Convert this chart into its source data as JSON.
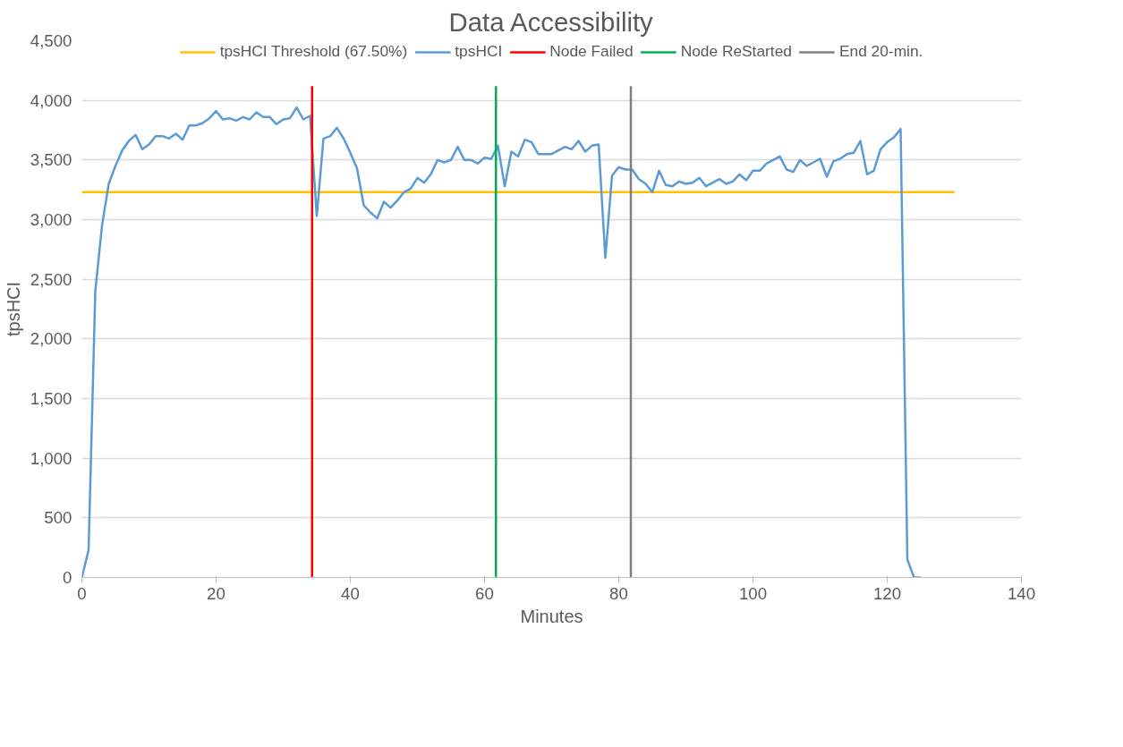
{
  "chart_data": {
    "type": "line",
    "title": "Data Accessibility",
    "xlabel": "Minutes",
    "ylabel": "tpsHCI",
    "xlim": [
      0,
      140
    ],
    "xticks": [
      0,
      20,
      40,
      60,
      80,
      100,
      120,
      140
    ],
    "ylim": [
      0,
      4500
    ],
    "yticks": [
      {
        "value": 0,
        "label": "0"
      },
      {
        "value": 500,
        "label": "500"
      },
      {
        "value": 1000,
        "label": "1,000"
      },
      {
        "value": 1500,
        "label": "1,500"
      },
      {
        "value": 2000,
        "label": "2,000"
      },
      {
        "value": 2500,
        "label": "2,500"
      },
      {
        "value": 3000,
        "label": "3,000"
      },
      {
        "value": 3500,
        "label": "3,500"
      },
      {
        "value": 4000,
        "label": "4,000"
      },
      {
        "value": 4500,
        "label": "4,500"
      }
    ],
    "grid": "y",
    "legend": "top",
    "marker": "none",
    "line_style": "solid",
    "series": [
      {
        "name": "tpsHCI Threshold (67.50%)",
        "color": "#ffc000",
        "x": [
          0,
          130
        ],
        "values": [
          3230,
          3230
        ]
      },
      {
        "name": "tpsHCI",
        "color": "#5b9bd5",
        "x": [
          0,
          1,
          2,
          3,
          4,
          5,
          6,
          7,
          8,
          9,
          10,
          11,
          12,
          13,
          14,
          15,
          16,
          17,
          18,
          19,
          20,
          21,
          22,
          23,
          24,
          25,
          26,
          27,
          28,
          29,
          30,
          31,
          32,
          33,
          34,
          35,
          36,
          37,
          38,
          39,
          40,
          41,
          42,
          43,
          44,
          45,
          46,
          47,
          48,
          49,
          50,
          51,
          52,
          53,
          54,
          55,
          56,
          57,
          58,
          59,
          60,
          61,
          62,
          63,
          64,
          65,
          66,
          67,
          68,
          69,
          70,
          71,
          72,
          73,
          74,
          75,
          76,
          77,
          78,
          79,
          80,
          81,
          82,
          83,
          84,
          85,
          86,
          87,
          88,
          89,
          90,
          91,
          92,
          93,
          94,
          95,
          96,
          97,
          98,
          99,
          100,
          101,
          102,
          103,
          104,
          105,
          106,
          107,
          108,
          109,
          110,
          111,
          112,
          113,
          114,
          115,
          116,
          117,
          118,
          119,
          120,
          121,
          122,
          123,
          124,
          125
        ],
        "values": [
          0,
          230,
          2400,
          2950,
          3300,
          3450,
          3580,
          3660,
          3710,
          3590,
          3630,
          3700,
          3700,
          3680,
          3720,
          3670,
          3790,
          3790,
          3810,
          3850,
          3910,
          3840,
          3850,
          3830,
          3860,
          3840,
          3900,
          3860,
          3860,
          3800,
          3840,
          3850,
          3940,
          3840,
          3870,
          3030,
          3680,
          3700,
          3770,
          3680,
          3560,
          3430,
          3120,
          3060,
          3010,
          3150,
          3100,
          3160,
          3230,
          3260,
          3350,
          3310,
          3380,
          3500,
          3480,
          3500,
          3610,
          3500,
          3500,
          3470,
          3520,
          3510,
          3620,
          3280,
          3570,
          3530,
          3670,
          3650,
          3550,
          3550,
          3550,
          3580,
          3610,
          3590,
          3660,
          3570,
          3620,
          3630,
          2680,
          3370,
          3440,
          3420,
          3420,
          3340,
          3300,
          3230,
          3410,
          3290,
          3280,
          3320,
          3300,
          3310,
          3350,
          3280,
          3310,
          3340,
          3300,
          3320,
          3380,
          3330,
          3410,
          3410,
          3470,
          3500,
          3530,
          3420,
          3400,
          3500,
          3450,
          3480,
          3510,
          3360,
          3490,
          3510,
          3550,
          3560,
          3660,
          3380,
          3410,
          3590,
          3650,
          3690,
          3760,
          150,
          0,
          0
        ]
      },
      {
        "name": "Node Failed",
        "color": "#ff0000",
        "x": [
          34.3,
          34.3
        ],
        "values": [
          0,
          4120
        ]
      },
      {
        "name": "Node ReStarted",
        "color": "#00b050",
        "x": [
          61.7,
          61.7
        ],
        "values": [
          0,
          4120
        ]
      },
      {
        "name": "End 20-min.",
        "color": "#7f7f7f",
        "x": [
          81.8,
          81.8
        ],
        "values": [
          0,
          4120
        ]
      }
    ]
  }
}
